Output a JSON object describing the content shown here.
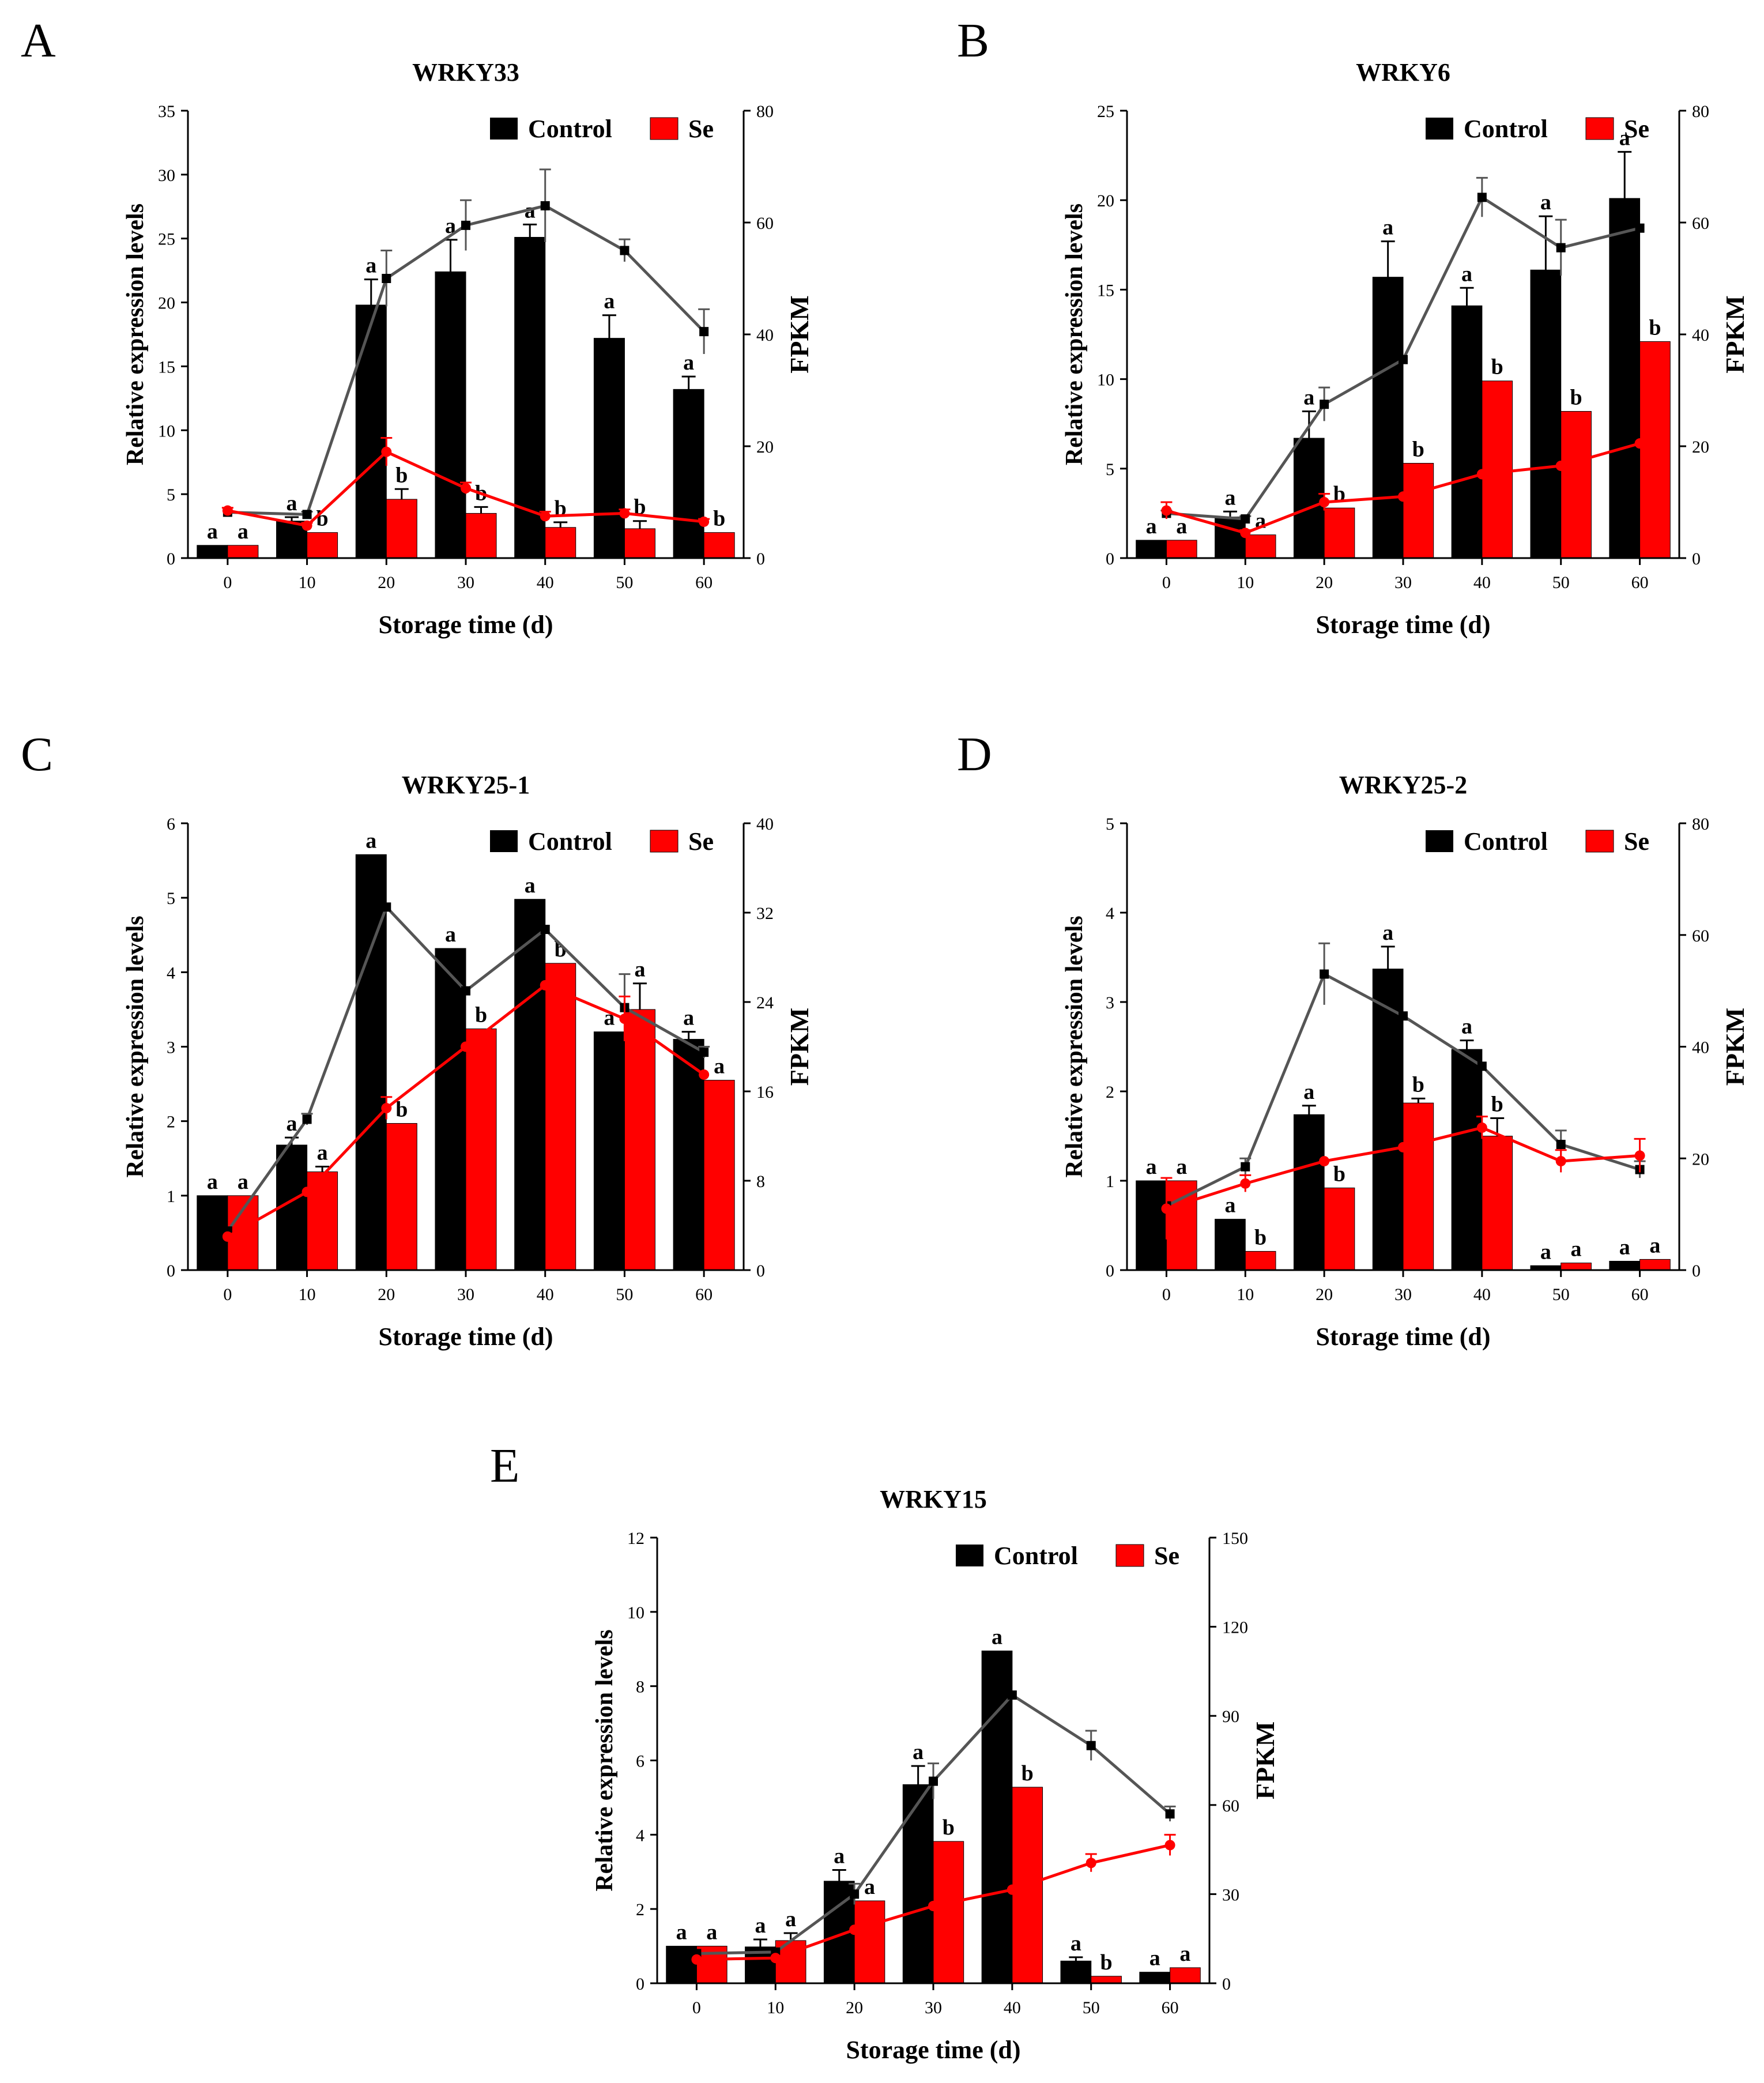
{
  "colors": {
    "control": "#000000",
    "se": "#ff0000",
    "control_line": "#555555",
    "axis": "#000000"
  },
  "chart_data": [
    {
      "panel": "A",
      "title": "WRKY33",
      "type": "bar",
      "categories": [
        "0",
        "10",
        "20",
        "30",
        "40",
        "50",
        "60"
      ],
      "xlabel": "Storage time (d)",
      "ylabel": "Relative expression levels",
      "y2label": "FPKM",
      "ylim": [
        0,
        35
      ],
      "yticks": [
        "0",
        "5",
        "10",
        "15",
        "20",
        "25",
        "30",
        "35"
      ],
      "y2lim": [
        0,
        80
      ],
      "y2ticks": [
        "0",
        "20",
        "40",
        "60",
        "80"
      ],
      "legend": [
        "Control",
        "Se"
      ],
      "series": [
        {
          "name": "Control",
          "values": [
            1.0,
            2.9,
            19.8,
            22.4,
            25.1,
            17.2,
            13.2
          ],
          "errors": [
            0,
            0.3,
            2.0,
            2.5,
            1.0,
            1.8,
            1.0
          ],
          "letters": [
            "a",
            "a",
            "a",
            "a",
            "a",
            "a",
            "a"
          ]
        },
        {
          "name": "Se",
          "values": [
            1.0,
            2.0,
            4.6,
            3.5,
            2.4,
            2.3,
            2.0
          ],
          "errors": [
            0,
            0,
            0.8,
            0.5,
            0.4,
            0.6,
            0
          ],
          "letters": [
            "a",
            "b",
            "b",
            "b",
            "b",
            "b",
            "b"
          ]
        }
      ],
      "lines": [
        {
          "name": "Control FPKM",
          "values": [
            8.2,
            7.8,
            50.0,
            59.5,
            63.0,
            55.0,
            40.5
          ],
          "errors": [
            0,
            0.5,
            5.0,
            4.5,
            6.5,
            2.0,
            4.0
          ]
        },
        {
          "name": "Se FPKM",
          "values": [
            8.5,
            5.8,
            19.0,
            12.5,
            7.5,
            8.0,
            6.5
          ],
          "errors": [
            0.5,
            0.5,
            2.5,
            1.0,
            0.8,
            0.7,
            0.5
          ]
        }
      ]
    },
    {
      "panel": "B",
      "title": "WRKY6",
      "type": "bar",
      "categories": [
        "0",
        "10",
        "20",
        "30",
        "40",
        "50",
        "60"
      ],
      "xlabel": "Storage time (d)",
      "ylabel": "Relative expression levels",
      "y2label": "FPKM",
      "ylim": [
        0,
        25
      ],
      "yticks": [
        "0",
        "5",
        "10",
        "15",
        "20",
        "25"
      ],
      "y2lim": [
        0,
        80
      ],
      "y2ticks": [
        "0",
        "20",
        "40",
        "60",
        "80"
      ],
      "legend": [
        "Control",
        "Se"
      ],
      "series": [
        {
          "name": "Control",
          "values": [
            1.0,
            2.3,
            6.7,
            15.7,
            14.1,
            16.1,
            20.1
          ],
          "errors": [
            0,
            0.3,
            1.5,
            2.0,
            1.0,
            3.0,
            2.6
          ],
          "letters": [
            "a",
            "a",
            "a",
            "a",
            "a",
            "a",
            "a"
          ]
        },
        {
          "name": "Se",
          "values": [
            1.0,
            1.3,
            2.8,
            5.3,
            9.9,
            8.2,
            12.1
          ],
          "errors": [
            0,
            0,
            0,
            0,
            0,
            0,
            0
          ],
          "letters": [
            "a",
            "a",
            "b",
            "b",
            "b",
            "b",
            "b"
          ]
        }
      ],
      "lines": [
        {
          "name": "Control FPKM",
          "values": [
            8.0,
            7.0,
            27.5,
            35.5,
            64.5,
            55.5,
            59.0
          ],
          "errors": [
            0.5,
            0.5,
            3.0,
            0,
            3.5,
            5.0,
            0
          ]
        },
        {
          "name": "Se FPKM",
          "values": [
            8.5,
            4.5,
            10.0,
            11.0,
            15.0,
            16.5,
            20.5
          ],
          "errors": [
            1.5,
            0.5,
            1.5,
            0,
            0,
            0,
            0
          ]
        }
      ]
    },
    {
      "panel": "C",
      "title": "WRKY25-1",
      "type": "bar",
      "categories": [
        "0",
        "10",
        "20",
        "30",
        "40",
        "50",
        "60"
      ],
      "xlabel": "Storage time (d)",
      "ylabel": "Relative expression levels",
      "y2label": "FPKM",
      "ylim": [
        0,
        6
      ],
      "yticks": [
        "0",
        "1",
        "2",
        "3",
        "4",
        "5",
        "6"
      ],
      "y2lim": [
        0,
        40
      ],
      "y2ticks": [
        "0",
        "8",
        "16",
        "24",
        "32",
        "40"
      ],
      "legend": [
        "Control",
        "Se"
      ],
      "series": [
        {
          "name": "Control",
          "values": [
            1.0,
            1.68,
            5.58,
            4.32,
            4.98,
            3.2,
            3.1
          ],
          "errors": [
            0,
            0.1,
            0,
            0,
            0,
            0,
            0.1
          ],
          "letters": [
            "a",
            "a",
            "a",
            "a",
            "a",
            "a",
            "a"
          ]
        },
        {
          "name": "Se",
          "values": [
            1.0,
            1.32,
            1.97,
            3.24,
            4.12,
            3.5,
            2.55
          ],
          "errors": [
            0,
            0.07,
            0,
            0,
            0,
            0.35,
            0
          ],
          "letters": [
            "a",
            "a",
            "b",
            "b",
            "b",
            "a",
            "a"
          ]
        }
      ],
      "lines": [
        {
          "name": "Control FPKM",
          "values": [
            3.5,
            13.5,
            32.5,
            25.0,
            30.5,
            23.5,
            19.5
          ],
          "errors": [
            0,
            0.5,
            0,
            0,
            0,
            3.0,
            0.5
          ]
        },
        {
          "name": "Se FPKM",
          "values": [
            3.0,
            7.0,
            14.5,
            20.0,
            25.5,
            22.5,
            17.5
          ],
          "errors": [
            0,
            0,
            1.0,
            0,
            0,
            2.0,
            0
          ]
        }
      ]
    },
    {
      "panel": "D",
      "title": "WRKY25-2",
      "type": "bar",
      "categories": [
        "0",
        "10",
        "20",
        "30",
        "40",
        "50",
        "60"
      ],
      "xlabel": "Storage time (d)",
      "ylabel": "Relative expression levels",
      "y2label": "FPKM",
      "ylim": [
        0,
        5
      ],
      "yticks": [
        "0",
        "1",
        "2",
        "3",
        "4",
        "5"
      ],
      "y2lim": [
        0,
        80
      ],
      "y2ticks": [
        "0",
        "20",
        "40",
        "60",
        "80"
      ],
      "legend": [
        "Control",
        "Se"
      ],
      "series": [
        {
          "name": "Control",
          "values": [
            1.0,
            0.57,
            1.74,
            3.37,
            2.47,
            0.05,
            0.1
          ],
          "errors": [
            0,
            0,
            0.1,
            0.25,
            0.1,
            0,
            0
          ],
          "letters": [
            "a",
            "a",
            "a",
            "a",
            "a",
            "a",
            "a"
          ]
        },
        {
          "name": "Se",
          "values": [
            1.0,
            0.21,
            0.92,
            1.87,
            1.5,
            0.08,
            0.12
          ],
          "errors": [
            0,
            0,
            0,
            0.05,
            0.2,
            0,
            0
          ],
          "letters": [
            "a",
            "b",
            "b",
            "b",
            "b",
            "a",
            "a"
          ]
        }
      ],
      "lines": [
        {
          "name": "Control FPKM",
          "values": [
            11.5,
            18.5,
            53.0,
            45.5,
            36.5,
            22.5,
            18.0
          ],
          "errors": [
            0,
            1.5,
            5.5,
            0,
            0,
            2.5,
            1.5
          ]
        },
        {
          "name": "Se FPKM",
          "values": [
            11.0,
            15.5,
            19.5,
            22.0,
            25.5,
            19.5,
            20.5
          ],
          "errors": [
            5.5,
            1.5,
            0,
            0,
            2.0,
            2.0,
            3.0
          ]
        }
      ]
    },
    {
      "panel": "E",
      "title": "WRKY15",
      "type": "bar",
      "categories": [
        "0",
        "10",
        "20",
        "30",
        "40",
        "50",
        "60"
      ],
      "xlabel": "Storage time (d)",
      "ylabel": "Relative expression levels",
      "y2label": "FPKM",
      "ylim": [
        0,
        12
      ],
      "yticks": [
        "0",
        "2",
        "4",
        "6",
        "8",
        "10",
        "12"
      ],
      "y2lim": [
        0,
        150
      ],
      "y2ticks": [
        "0",
        "30",
        "60",
        "90",
        "120",
        "150"
      ],
      "legend": [
        "Control",
        "Se"
      ],
      "series": [
        {
          "name": "Control",
          "values": [
            1.0,
            0.98,
            2.75,
            5.35,
            8.95,
            0.6,
            0.3
          ],
          "errors": [
            0,
            0.2,
            0.3,
            0.5,
            0,
            0.1,
            0
          ],
          "letters": [
            "a",
            "a",
            "a",
            "a",
            "a",
            "a",
            "a"
          ]
        },
        {
          "name": "Se",
          "values": [
            1.0,
            1.15,
            2.22,
            3.82,
            5.28,
            0.19,
            0.42
          ],
          "errors": [
            0,
            0.2,
            0,
            0,
            0,
            0,
            0
          ],
          "letters": [
            "a",
            "a",
            "a",
            "b",
            "b",
            "b",
            "a"
          ]
        }
      ],
      "lines": [
        {
          "name": "Control FPKM",
          "values": [
            10.0,
            10.5,
            30.0,
            68.0,
            97.0,
            80.0,
            57.0
          ],
          "errors": [
            0,
            0,
            3.5,
            6.0,
            0,
            5.0,
            2.5
          ]
        },
        {
          "name": "Se FPKM",
          "values": [
            8.0,
            8.5,
            18.0,
            26.0,
            31.5,
            40.5,
            46.5
          ],
          "errors": [
            0,
            0,
            0,
            0,
            0,
            3.0,
            3.5
          ]
        }
      ]
    }
  ]
}
